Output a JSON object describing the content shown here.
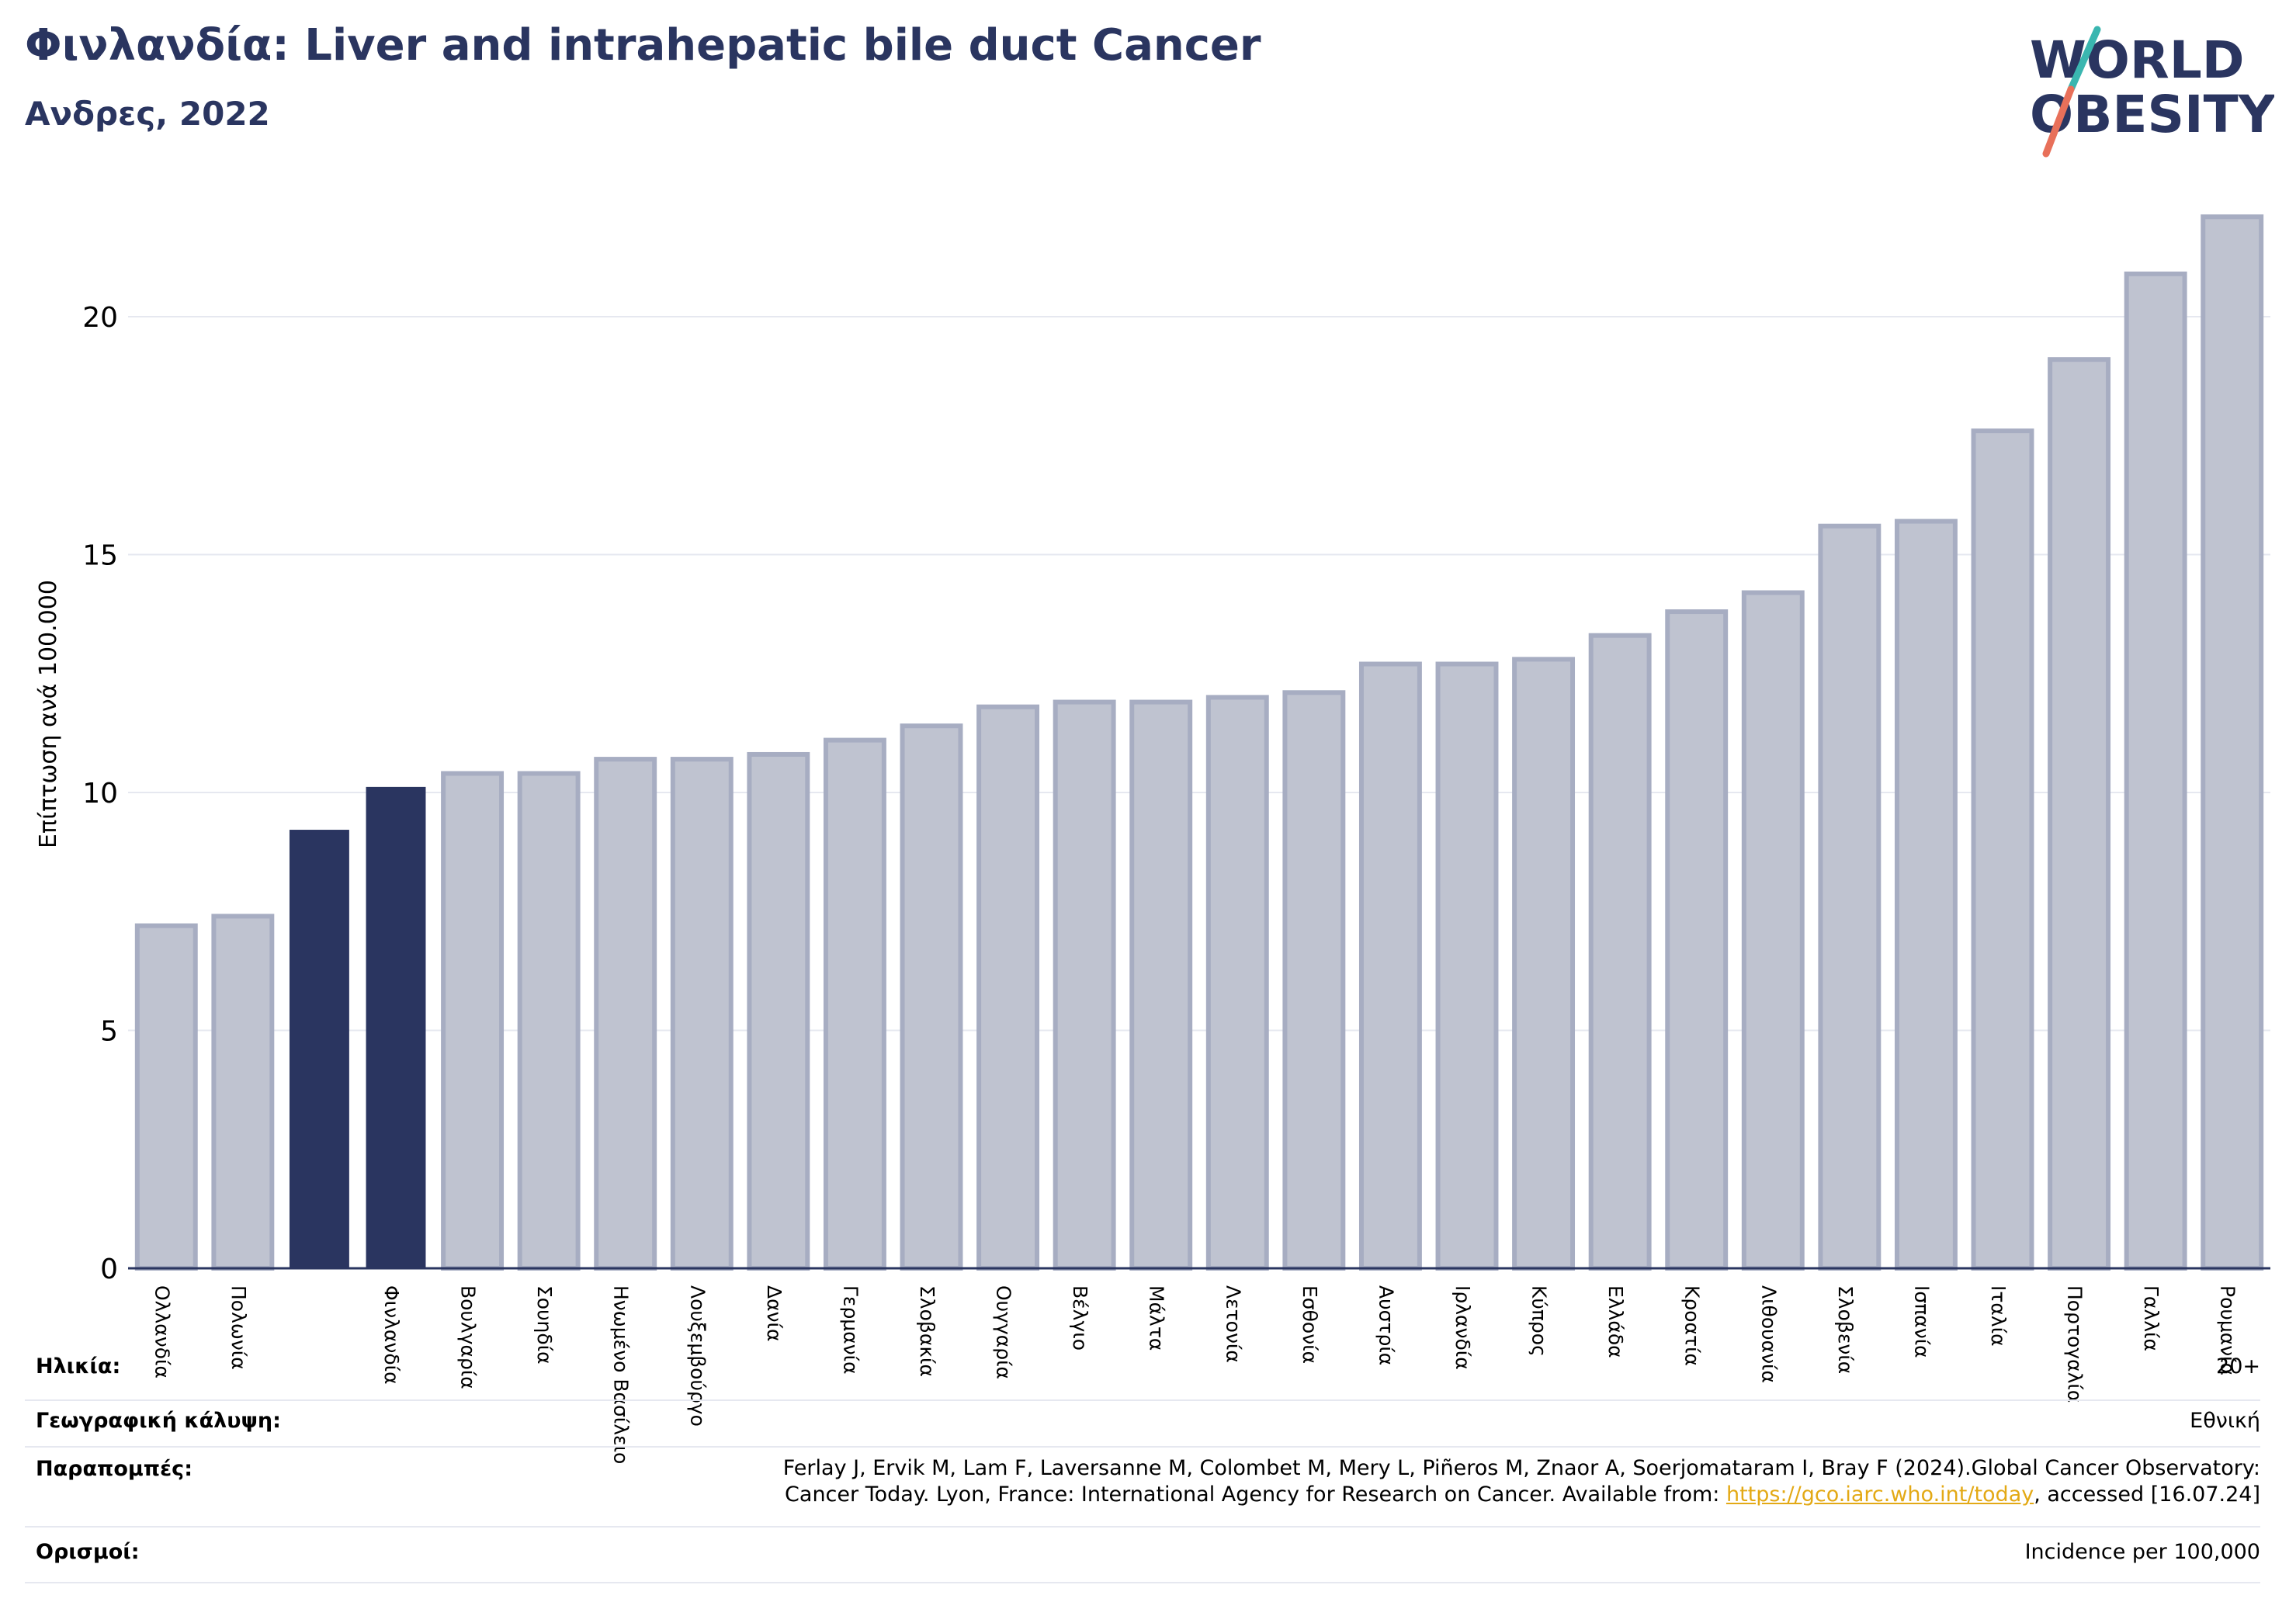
{
  "header": {
    "title": "Φινλανδία: Liver and intrahepatic bile duct Cancer",
    "subtitle": "Ανδρες, 2022"
  },
  "logo": {
    "line1": "WORLD",
    "line2": "OBESITY",
    "colors": {
      "text": "#2a3560",
      "slash_top": "#3ab6b0",
      "slash_bottom": "#e8705a"
    }
  },
  "chart_data": {
    "type": "bar",
    "ylabel": "Επίπτωση ανά 100.000",
    "ylim": [
      0,
      22.5
    ],
    "yticks": [
      0,
      5,
      10,
      15,
      20
    ],
    "grid": true,
    "categories": [
      "Ολλανδία",
      "Πολωνία",
      "",
      "Φινλανδία",
      "Βουλγαρία",
      "Σουηδία",
      "Ηνωμένο Βασίλειο",
      "Λουξεμβούργο",
      "Δανία",
      "Γερμανία",
      "Σλοβακία",
      "Ουγγαρία",
      "Βέλγιο",
      "Μάλτα",
      "Λετονία",
      "Εσθονία",
      "Αυστρία",
      "Ιρλανδία",
      "Κύπρος",
      "Ελλάδα",
      "Κροατία",
      "Λιθουανία",
      "Σλοβενία",
      "Ισπανία",
      "Ιταλία",
      "Πορτογαλία",
      "Γαλλία",
      "Ρουμανία"
    ],
    "values": [
      7.2,
      7.4,
      9.2,
      10.1,
      10.4,
      10.4,
      10.7,
      10.7,
      10.8,
      11.1,
      11.4,
      11.8,
      11.9,
      11.9,
      12.0,
      12.1,
      12.7,
      12.7,
      12.8,
      13.3,
      13.8,
      14.2,
      15.6,
      15.7,
      17.6,
      19.1,
      20.9,
      22.1
    ],
    "highlighted": [
      2,
      3
    ],
    "colors": {
      "default_fill": "#bfc3d0",
      "default_edge": "#a7adc2",
      "highlight": "#2a3560",
      "grid": "#e6e8f0",
      "axis": "#2a3560"
    }
  },
  "info": {
    "age": {
      "label": "Ηλικία:",
      "value": "20+"
    },
    "coverage": {
      "label": "Γεωγραφική κάλυψη:",
      "value": "Εθνική"
    },
    "references": {
      "label": "Παραπομπές:",
      "line1": "Ferlay J, Ervik M, Lam F, Laversanne M, Colombet M, Mery L, Piñeros M, Znaor A, Soerjomataram I, Bray F (2024).Global Cancer Observatory:",
      "line2_pre": "Cancer Today. Lyon, France: International Agency for Research on Cancer. Available from: ",
      "link": "https://gco.iarc.who.int/today",
      "line2_post": ", accessed [16.07.24]"
    },
    "definitions": {
      "label": "Ορισμοί:",
      "value": "Incidence per 100,000"
    }
  }
}
